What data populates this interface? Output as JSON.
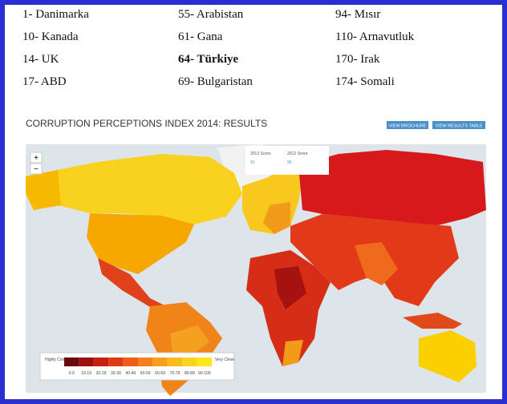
{
  "ranking": {
    "columns": [
      [
        "1- Danimarka",
        "10- Kanada",
        "14- UK",
        "17- ABD"
      ],
      [
        "55- Arabistan",
        "61- Gana",
        "64- Türkiye",
        "69- Bulgaristan"
      ],
      [
        "94- Mısır",
        "110- Arnavutluk",
        "170- Irak",
        "174- Somali"
      ]
    ]
  },
  "map": {
    "title": "CORRUPTION PERCEPTIONS INDEX 2014: RESULTS",
    "buttons": [
      "VIEW BROCHURE",
      "VIEW RESULTS TABLE"
    ],
    "zoom": [
      "+",
      "−"
    ],
    "tooltip": {
      "labels": [
        "2013 Score",
        "2012 Score"
      ],
      "values": [
        "91",
        "90"
      ]
    },
    "legend": {
      "low": "Highly Corrupt",
      "high": "Very Clean",
      "ranges": [
        "0-9",
        "10-19",
        "20-29",
        "30-39",
        "40-49",
        "50-59",
        "60-69",
        "70-79",
        "80-89",
        "90-100"
      ]
    }
  }
}
